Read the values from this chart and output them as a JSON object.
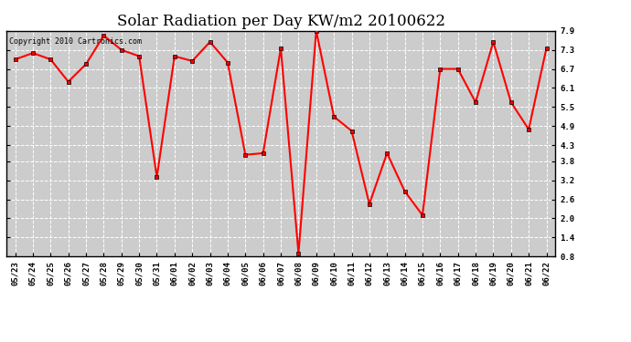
{
  "title": "Solar Radiation per Day KW/m2 20100622",
  "copyright": "Copyright 2010 Cartronics.com",
  "dates": [
    "05/23",
    "05/24",
    "05/25",
    "05/26",
    "05/27",
    "05/28",
    "05/29",
    "05/30",
    "05/31",
    "06/01",
    "06/02",
    "06/03",
    "06/04",
    "06/05",
    "06/06",
    "06/07",
    "06/08",
    "06/09",
    "06/10",
    "06/11",
    "06/12",
    "06/13",
    "06/14",
    "06/15",
    "06/16",
    "06/17",
    "06/18",
    "06/19",
    "06/20",
    "06/21",
    "06/22"
  ],
  "values": [
    7.0,
    7.2,
    7.0,
    6.3,
    6.85,
    7.75,
    7.3,
    7.1,
    3.3,
    7.1,
    6.95,
    7.55,
    6.9,
    4.0,
    4.05,
    7.35,
    0.9,
    7.9,
    5.2,
    4.75,
    2.45,
    4.05,
    2.85,
    2.1,
    6.7,
    6.7,
    5.65,
    7.55,
    5.65,
    4.8,
    7.35
  ],
  "ylim": [
    0.8,
    7.9
  ],
  "yticks": [
    0.8,
    1.4,
    2.0,
    2.6,
    3.2,
    3.8,
    4.3,
    4.9,
    5.5,
    6.1,
    6.7,
    7.3,
    7.9
  ],
  "line_color": "#ff0000",
  "marker": "s",
  "marker_size": 2.5,
  "bg_color": "#ffffff",
  "plot_bg": "#cccccc",
  "grid_color": "#ffffff",
  "title_fontsize": 12,
  "tick_fontsize": 6.5,
  "copyright_fontsize": 6
}
